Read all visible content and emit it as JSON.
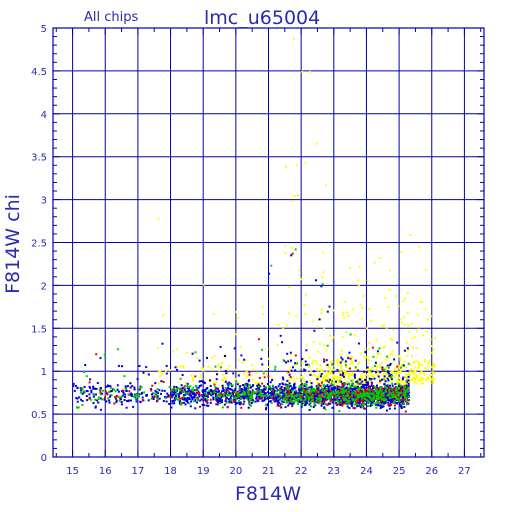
{
  "header": {
    "subset_label": "All chips",
    "title": "lmc_u65004"
  },
  "colors": {
    "axis": "#0000aa",
    "text": "#2b2bb0",
    "grid": "#0000aa",
    "background": "#ffffff"
  },
  "chart_data": {
    "type": "scatter",
    "title": "lmc_u65004",
    "subtitle": "All chips",
    "xlabel": "F814W",
    "ylabel": "F814W chi",
    "xlim": [
      14.4,
      27.6
    ],
    "ylim": [
      0,
      5
    ],
    "x_ticks": [
      "15",
      "16",
      "17",
      "18",
      "19",
      "20",
      "21",
      "22",
      "23",
      "24",
      "25",
      "26",
      "27"
    ],
    "y_ticks": [
      "0",
      "0.5",
      "1",
      "1.5",
      "2",
      "2.5",
      "3",
      "3.5",
      "4",
      "4.5",
      "5"
    ],
    "grid": true,
    "legend": "none",
    "point_colors": [
      "#0000dd",
      "#00cc00",
      "#ee0000",
      "#ffff00",
      "#000000"
    ],
    "series_trends": [
      {
        "color": "#0000dd",
        "x_range": [
          15,
          25.4
        ],
        "typical_y": 0.75,
        "densest_x": [
          21,
          25
        ]
      },
      {
        "color": "#00cc00",
        "x_range": [
          15,
          25.4
        ],
        "typical_y": 0.8,
        "densest_x": [
          20,
          24.5
        ]
      },
      {
        "color": "#ee0000",
        "x_range": [
          15.5,
          25.4
        ],
        "typical_y": 0.8,
        "densest_x": [
          20,
          24.5
        ]
      },
      {
        "color": "#ffff00",
        "x_range": [
          17.5,
          26.3
        ],
        "typical_y": 1.1,
        "densest_x": [
          22,
          25.5
        ],
        "max_y": 4.9
      },
      {
        "color": "#000000",
        "x_range": [
          15,
          25
        ],
        "typical_y": 0.7,
        "densest_x": [
          18,
          23
        ]
      }
    ]
  }
}
